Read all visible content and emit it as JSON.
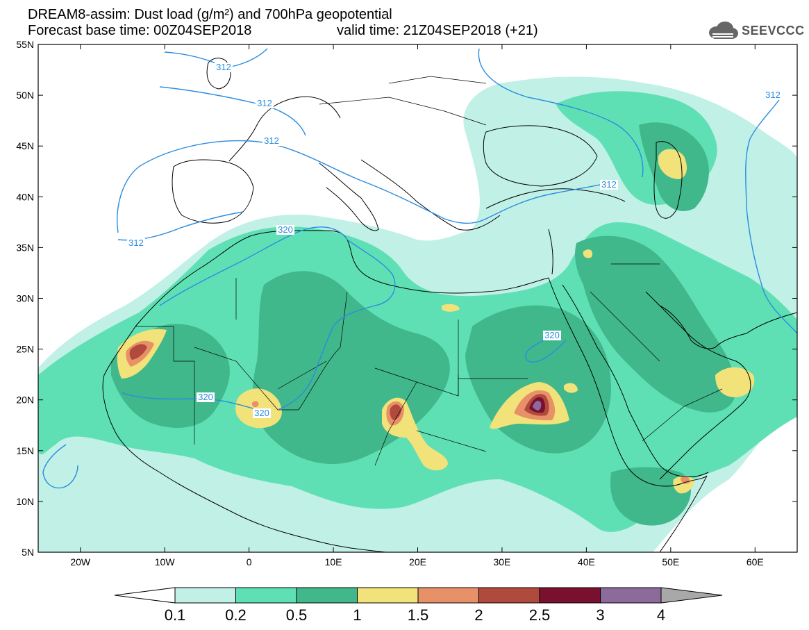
{
  "title": {
    "line1": "DREAM8-assim: Dust load (g/m²) and 700hPa geopotential",
    "line2_left": "Forecast base time: 00Z04SEP2018",
    "line2_right": "valid time: 21Z04SEP2018 (+21)"
  },
  "logo": {
    "icon": "cloud-icon",
    "text": "SEEVCCC"
  },
  "map": {
    "lon_range": [
      -25,
      65
    ],
    "lat_range": [
      5,
      55
    ],
    "lat_ticks": [
      "55N",
      "50N",
      "45N",
      "40N",
      "35N",
      "30N",
      "25N",
      "20N",
      "15N",
      "10N",
      "5N"
    ],
    "lon_ticks": [
      "20W",
      "10W",
      "0",
      "10E",
      "20E",
      "30E",
      "40E",
      "50E",
      "60E"
    ],
    "contour_labels": [
      "312",
      "312",
      "312",
      "312",
      "312",
      "312",
      "320",
      "320",
      "320",
      "320"
    ]
  },
  "colorbar": {
    "labels": [
      "0.1",
      "0.2",
      "0.5",
      "1",
      "1.5",
      "2",
      "2.5",
      "3",
      "4"
    ],
    "colors": [
      "#c0f0e6",
      "#5fe0b4",
      "#40b88c",
      "#f2e27a",
      "#e89068",
      "#b04a3c",
      "#7a1030",
      "#8c6a9c"
    ],
    "under_color": "#ffffff",
    "over_color": "#a8a8a8"
  },
  "colors": {
    "contour": "#2a8ce0",
    "coast": "#000000"
  }
}
